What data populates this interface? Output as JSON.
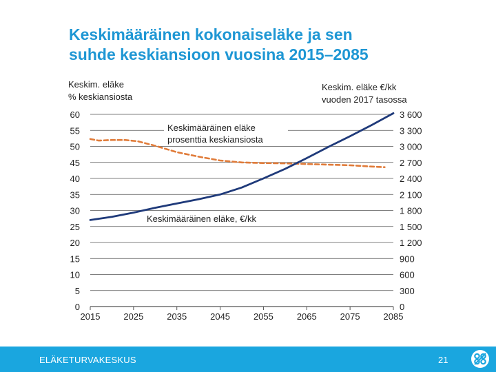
{
  "slide": {
    "title_line1": "Keskimääräinen kokonaiseläke ja sen",
    "title_line2": "suhde keskiansioon vuosina 2015–2085"
  },
  "footer": {
    "organization": "ELÄKETURVAKESKUS",
    "page_number": "21",
    "logo_icon": "eto-logo-icon"
  },
  "colors": {
    "title": "#1f97d4",
    "footer_bg": "#1aa6df",
    "pension_line": "#1f3a7a",
    "ratio_line": "#e07b39",
    "grid": "#555555"
  },
  "chart_data": {
    "type": "line",
    "x_ticks": [
      "2015",
      "2025",
      "2035",
      "2045",
      "2055",
      "2065",
      "2075",
      "2085"
    ],
    "xlim": [
      2015,
      2085
    ],
    "left_axis": {
      "label_line1": "Keskim. eläke",
      "label_line2": "% keskiansiosta",
      "ticks": [
        "60",
        "55",
        "50",
        "45",
        "40",
        "35",
        "30",
        "25",
        "20",
        "15",
        "10",
        "5",
        "0"
      ],
      "ylim": [
        0,
        60
      ]
    },
    "right_axis": {
      "label_line1": "Keskim. eläke €/kk",
      "label_line2": "vuoden 2017 tasossa",
      "ticks": [
        "3 600",
        "3 300",
        "3 000",
        "2 700",
        "2 400",
        "2 100",
        "1 800",
        "1 500",
        "1 200",
        "900",
        "600",
        "300",
        "0"
      ],
      "ylim": [
        0,
        3600
      ]
    },
    "grid": true,
    "series": [
      {
        "name": "Keskimääräinen eläke prosenttia keskiansiosta",
        "label_line1": "Keskimääräinen eläke",
        "label_line2": "prosenttia keskiansiosta",
        "axis": "left",
        "style": "dashed",
        "color": "#e07b39",
        "x": [
          2015,
          2017,
          2020,
          2023,
          2026,
          2030,
          2035,
          2040,
          2045,
          2050,
          2055,
          2060,
          2065,
          2070,
          2075,
          2080,
          2083
        ],
        "values": [
          52.3,
          51.8,
          52.0,
          52.0,
          51.6,
          50.2,
          48.2,
          46.8,
          45.6,
          45.0,
          44.8,
          44.7,
          44.5,
          44.3,
          44.1,
          43.7,
          43.5
        ]
      },
      {
        "name": "Keskimääräinen eläke, €/kk",
        "label": "Keskimääräinen eläke, €/kk",
        "axis": "right",
        "style": "solid",
        "color": "#1f3a7a",
        "x": [
          2015,
          2020,
          2025,
          2030,
          2035,
          2040,
          2045,
          2050,
          2055,
          2060,
          2065,
          2070,
          2075,
          2080,
          2085
        ],
        "values": [
          1620,
          1680,
          1760,
          1850,
          1930,
          2010,
          2100,
          2230,
          2400,
          2580,
          2780,
          2990,
          3190,
          3400,
          3620
        ]
      }
    ]
  }
}
